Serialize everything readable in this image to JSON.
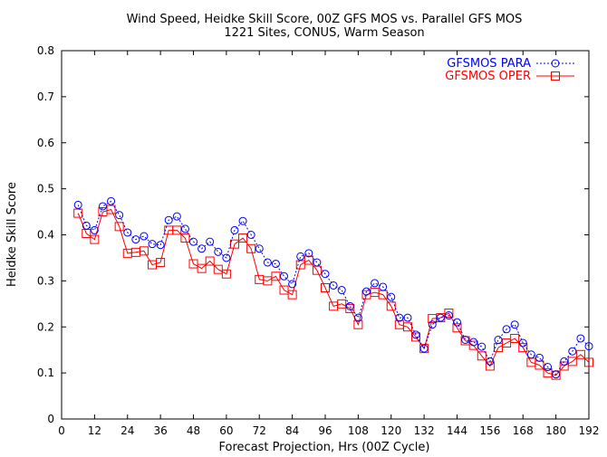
{
  "chart_data": {
    "type": "line",
    "title": "Wind Speed, Heidke Skill Score, 00Z GFS MOS vs. Parallel GFS MOS",
    "subtitle": "1221 Sites, CONUS, Warm Season",
    "xlabel": "Forecast Projection, Hrs (00Z Cycle)",
    "ylabel": "Heidke Skill Score",
    "xlim": [
      0,
      192
    ],
    "ylim": [
      0,
      0.8
    ],
    "xticks": [
      0,
      12,
      24,
      36,
      48,
      60,
      72,
      84,
      96,
      108,
      120,
      132,
      144,
      156,
      168,
      180,
      192
    ],
    "yticks": [
      0,
      0.1,
      0.2,
      0.3,
      0.4,
      0.5,
      0.6,
      0.7,
      0.8
    ],
    "grid": false,
    "legend_position": "top-right",
    "x": [
      6,
      9,
      12,
      15,
      18,
      21,
      24,
      27,
      30,
      33,
      36,
      39,
      42,
      45,
      48,
      51,
      54,
      57,
      60,
      63,
      66,
      69,
      72,
      75,
      78,
      81,
      84,
      87,
      90,
      93,
      96,
      99,
      102,
      105,
      108,
      111,
      114,
      117,
      120,
      123,
      126,
      129,
      132,
      135,
      138,
      141,
      144,
      147,
      150,
      153,
      156,
      159,
      162,
      165,
      168,
      171,
      174,
      177,
      180,
      183,
      186,
      189,
      192
    ],
    "series": [
      {
        "name": "GFSMOS PARA",
        "color": "#0000ff",
        "marker": "circle",
        "line_style": "dotted",
        "values": [
          0.465,
          0.42,
          0.41,
          0.462,
          0.473,
          0.443,
          0.405,
          0.39,
          0.397,
          0.38,
          0.378,
          0.432,
          0.44,
          0.413,
          0.385,
          0.37,
          0.385,
          0.363,
          0.35,
          0.41,
          0.43,
          0.4,
          0.37,
          0.34,
          0.337,
          0.31,
          0.293,
          0.353,
          0.36,
          0.34,
          0.315,
          0.29,
          0.28,
          0.245,
          0.22,
          0.277,
          0.295,
          0.287,
          0.265,
          0.22,
          0.22,
          0.183,
          0.153,
          0.205,
          0.22,
          0.225,
          0.21,
          0.172,
          0.167,
          0.157,
          0.125,
          0.172,
          0.195,
          0.205,
          0.165,
          0.14,
          0.133,
          0.113,
          0.097,
          0.125,
          0.147,
          0.175,
          0.158
        ]
      },
      {
        "name": "GFSMOS OPER",
        "color": "#ff0000",
        "marker": "square",
        "line_style": "solid",
        "values": [
          0.447,
          0.403,
          0.39,
          0.45,
          0.455,
          0.418,
          0.36,
          0.362,
          0.365,
          0.335,
          0.34,
          0.41,
          0.41,
          0.393,
          0.337,
          0.327,
          0.343,
          0.325,
          0.315,
          0.38,
          0.393,
          0.37,
          0.303,
          0.3,
          0.31,
          0.28,
          0.27,
          0.335,
          0.345,
          0.323,
          0.285,
          0.245,
          0.25,
          0.24,
          0.205,
          0.27,
          0.275,
          0.27,
          0.245,
          0.205,
          0.2,
          0.178,
          0.153,
          0.218,
          0.22,
          0.23,
          0.198,
          0.17,
          0.16,
          0.137,
          0.115,
          0.155,
          0.165,
          0.175,
          0.155,
          0.123,
          0.117,
          0.1,
          0.095,
          0.115,
          0.125,
          0.14,
          0.123
        ]
      }
    ]
  }
}
